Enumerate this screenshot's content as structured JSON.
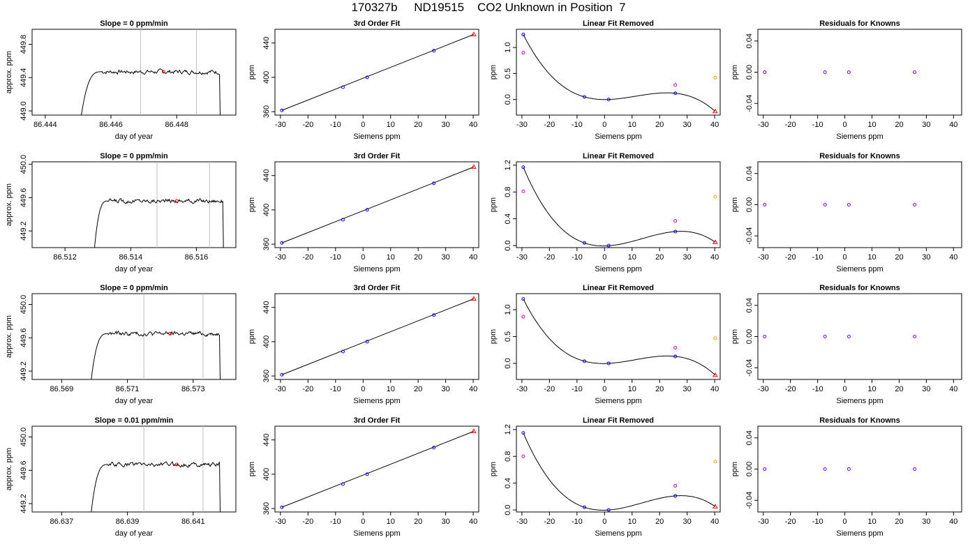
{
  "page": {
    "title": "170327b     ND19515    CO2 Unknown in Position  7"
  },
  "chart_data": [
    {
      "type": "line",
      "row": 0,
      "col": 0,
      "title": "Slope =  0  ppm/min",
      "xlabel": "day of year",
      "ylabel": "approx. ppm",
      "xlim": [
        86.4436,
        86.4498
      ],
      "ylim": [
        448.95,
        449.98
      ],
      "xticks": [
        86.444,
        86.446,
        86.448
      ],
      "yticks": [
        449.0,
        449.4,
        449.8
      ],
      "vlines": [
        86.4469,
        86.4486
      ],
      "marker_x": 86.4476,
      "trace": {
        "x0": 86.4451,
        "x1": 86.4493,
        "rise_end": 86.4457,
        "plateau": 449.47,
        "start_val": 448.95,
        "end_val": 448.95
      }
    },
    {
      "type": "scatter",
      "row": 0,
      "col": 1,
      "title": "3rd Order Fit",
      "xlabel": "Siemens ppm",
      "ylabel": "ppm",
      "xlim": [
        -32,
        42
      ],
      "ylim": [
        356,
        456
      ],
      "xticks": [
        -30,
        -20,
        -10,
        0,
        10,
        20,
        30,
        40
      ],
      "yticks": [
        360,
        400,
        440
      ],
      "points": [
        [
          -29.5,
          361.5
        ],
        [
          -7.3,
          388.5
        ],
        [
          1.5,
          400
        ],
        [
          25.7,
          431
        ],
        [
          40.2,
          450
        ]
      ]
    },
    {
      "type": "scatter",
      "row": 0,
      "col": 2,
      "title": "Linear Fit Removed",
      "xlabel": "Siemens ppm",
      "ylabel": "ppm",
      "xlim": [
        -32,
        42
      ],
      "ylim": [
        -0.3,
        1.35
      ],
      "xticks": [
        -30,
        -20,
        -10,
        0,
        10,
        20,
        30,
        40
      ],
      "yticks": [
        0.0,
        0.5,
        1.0
      ],
      "known": [
        [
          -29.5,
          1.25
        ],
        [
          -7.3,
          0.05
        ],
        [
          1.5,
          0.0
        ],
        [
          25.7,
          0.12
        ]
      ],
      "magenta": [
        [
          -29.5,
          0.9
        ],
        [
          25.7,
          0.28
        ]
      ],
      "orange": [
        [
          40.2,
          0.42
        ]
      ],
      "unknown": [
        40.2,
        -0.23
      ],
      "curve": [
        1.25,
        0.05,
        0.0,
        0.12,
        -0.23
      ]
    },
    {
      "type": "scatter",
      "row": 0,
      "col": 3,
      "title": "Residuals for Knowns",
      "xlabel": "Siemens ppm",
      "ylabel": "ppm",
      "xlim": [
        -32,
        43
      ],
      "ylim": [
        -0.055,
        0.055
      ],
      "xticks": [
        -30,
        -20,
        -10,
        0,
        10,
        20,
        30,
        40
      ],
      "yticks": [
        -0.04,
        0.0,
        0.04
      ],
      "points": [
        [
          -29.5,
          0
        ],
        [
          -7.3,
          0
        ],
        [
          1.5,
          0
        ],
        [
          25.7,
          0
        ]
      ]
    },
    {
      "type": "line",
      "row": 1,
      "col": 0,
      "title": "Slope =  0  ppm/min",
      "xlabel": "day of year",
      "ylabel": "approx. ppm",
      "xlim": [
        86.511,
        86.5172
      ],
      "ylim": [
        449.0,
        450.03
      ],
      "xticks": [
        86.512,
        86.514,
        86.516
      ],
      "yticks": [
        449.2,
        449.6,
        450.0
      ],
      "vlines": [
        86.5148,
        86.5164
      ],
      "marker_x": 86.5154,
      "trace": {
        "x0": 86.5129,
        "x1": 86.5168,
        "rise_end": 86.5133,
        "plateau": 449.56,
        "start_val": 449.0,
        "end_val": 449.0
      }
    },
    {
      "type": "scatter",
      "row": 1,
      "col": 1,
      "title": "3rd Order Fit",
      "xlabel": "Siemens ppm",
      "ylabel": "ppm",
      "xlim": [
        -32,
        42
      ],
      "ylim": [
        356,
        456
      ],
      "xticks": [
        -30,
        -20,
        -10,
        0,
        10,
        20,
        30,
        40
      ],
      "yticks": [
        360,
        400,
        440
      ],
      "points": [
        [
          -29.5,
          361.5
        ],
        [
          -7.3,
          388.5
        ],
        [
          1.5,
          400
        ],
        [
          25.7,
          431
        ],
        [
          40.2,
          450
        ]
      ]
    },
    {
      "type": "scatter",
      "row": 1,
      "col": 2,
      "title": "Linear Fit Removed",
      "xlabel": "Siemens ppm",
      "ylabel": "ppm",
      "xlim": [
        -32,
        42
      ],
      "ylim": [
        -0.03,
        1.25
      ],
      "xticks": [
        -30,
        -20,
        -10,
        0,
        10,
        20,
        30,
        40
      ],
      "yticks": [
        0.0,
        0.4,
        0.8,
        1.2
      ],
      "known": [
        [
          -29.5,
          1.17
        ],
        [
          -7.3,
          0.04
        ],
        [
          1.5,
          0.0
        ],
        [
          25.7,
          0.21
        ]
      ],
      "magenta": [
        [
          -29.5,
          0.81
        ],
        [
          25.7,
          0.37
        ]
      ],
      "orange": [
        [
          40.2,
          0.73
        ]
      ],
      "unknown": [
        40.2,
        0.05
      ],
      "curve": [
        1.17,
        0.04,
        0.0,
        0.21,
        0.05
      ]
    },
    {
      "type": "scatter",
      "row": 1,
      "col": 3,
      "title": "Residuals for Knowns",
      "xlabel": "Siemens ppm",
      "ylabel": "ppm",
      "xlim": [
        -32,
        43
      ],
      "ylim": [
        -0.055,
        0.055
      ],
      "xticks": [
        -30,
        -20,
        -10,
        0,
        10,
        20,
        30,
        40
      ],
      "yticks": [
        -0.04,
        0.0,
        0.04
      ],
      "points": [
        [
          -29.5,
          0
        ],
        [
          -7.3,
          0
        ],
        [
          1.5,
          0
        ],
        [
          25.7,
          0
        ]
      ]
    },
    {
      "type": "line",
      "row": 2,
      "col": 0,
      "title": "Slope =  0  ppm/min",
      "xlabel": "day of year",
      "ylabel": "approx. ppm",
      "xlim": [
        86.5681,
        86.5743
      ],
      "ylim": [
        449.1,
        450.13
      ],
      "xticks": [
        86.569,
        86.571,
        86.573
      ],
      "yticks": [
        449.2,
        449.6,
        450.0
      ],
      "vlines": [
        86.5715,
        86.5733
      ],
      "marker_x": 86.5723,
      "trace": {
        "x0": 86.5699,
        "x1": 86.5738,
        "rise_end": 86.5704,
        "plateau": 449.65,
        "start_val": 449.1,
        "end_val": 449.1
      }
    },
    {
      "type": "scatter",
      "row": 2,
      "col": 1,
      "title": "3rd Order Fit",
      "xlabel": "Siemens ppm",
      "ylabel": "ppm",
      "xlim": [
        -32,
        42
      ],
      "ylim": [
        356,
        456
      ],
      "xticks": [
        -30,
        -20,
        -10,
        0,
        10,
        20,
        30,
        40
      ],
      "yticks": [
        360,
        400,
        440
      ],
      "points": [
        [
          -29.5,
          361.5
        ],
        [
          -7.3,
          388.5
        ],
        [
          1.5,
          400
        ],
        [
          25.7,
          431
        ],
        [
          40.2,
          450
        ]
      ]
    },
    {
      "type": "scatter",
      "row": 2,
      "col": 2,
      "title": "Linear Fit Removed",
      "xlabel": "Siemens ppm",
      "ylabel": "ppm",
      "xlim": [
        -32,
        42
      ],
      "ylim": [
        -0.3,
        1.3
      ],
      "xticks": [
        -30,
        -20,
        -10,
        0,
        10,
        20,
        30,
        40
      ],
      "yticks": [
        0.0,
        0.5,
        1.0
      ],
      "known": [
        [
          -29.5,
          1.2
        ],
        [
          -7.3,
          0.04
        ],
        [
          1.5,
          0.0
        ],
        [
          25.7,
          0.13
        ]
      ],
      "magenta": [
        [
          -29.5,
          0.87
        ],
        [
          25.7,
          0.29
        ]
      ],
      "orange": [
        [
          40.2,
          0.47
        ]
      ],
      "unknown": [
        40.2,
        -0.22
      ],
      "curve": [
        1.2,
        0.04,
        0.0,
        0.13,
        -0.22
      ]
    },
    {
      "type": "scatter",
      "row": 2,
      "col": 3,
      "title": "Residuals for Knowns",
      "xlabel": "Siemens ppm",
      "ylabel": "ppm",
      "xlim": [
        -32,
        43
      ],
      "ylim": [
        -0.055,
        0.055
      ],
      "xticks": [
        -30,
        -20,
        -10,
        0,
        10,
        20,
        30,
        40
      ],
      "yticks": [
        -0.04,
        0.0,
        0.04
      ],
      "points": [
        [
          -29.5,
          0
        ],
        [
          -7.3,
          0
        ],
        [
          1.5,
          0
        ],
        [
          25.7,
          0
        ]
      ]
    },
    {
      "type": "line",
      "row": 3,
      "col": 0,
      "title": "Slope =  0.01  ppm/min",
      "xlabel": "day of year",
      "ylabel": "approx. ppm",
      "xlim": [
        86.6361,
        86.6423
      ],
      "ylim": [
        449.1,
        450.13
      ],
      "xticks": [
        86.637,
        86.639,
        86.641
      ],
      "yticks": [
        449.2,
        449.6,
        450.0
      ],
      "vlines": [
        86.6395,
        86.6413
      ],
      "marker_x": 86.6405,
      "trace": {
        "x0": 86.6379,
        "x1": 86.6418,
        "rise_end": 86.6384,
        "plateau": 449.67,
        "start_val": 449.1,
        "end_val": 449.1
      }
    },
    {
      "type": "scatter",
      "row": 3,
      "col": 1,
      "title": "3rd Order Fit",
      "xlabel": "Siemens ppm",
      "ylabel": "ppm",
      "xlim": [
        -32,
        42
      ],
      "ylim": [
        356,
        456
      ],
      "xticks": [
        -30,
        -20,
        -10,
        0,
        10,
        20,
        30,
        40
      ],
      "yticks": [
        360,
        400,
        440
      ],
      "points": [
        [
          -29.5,
          361.5
        ],
        [
          -7.3,
          388.5
        ],
        [
          1.5,
          400
        ],
        [
          25.7,
          431
        ],
        [
          40.2,
          450
        ]
      ]
    },
    {
      "type": "scatter",
      "row": 3,
      "col": 2,
      "title": "Linear Fit Removed",
      "xlabel": "Siemens ppm",
      "ylabel": "ppm",
      "xlim": [
        -32,
        42
      ],
      "ylim": [
        -0.03,
        1.25
      ],
      "xticks": [
        -30,
        -20,
        -10,
        0,
        10,
        20,
        30,
        40
      ],
      "yticks": [
        0.0,
        0.4,
        0.8,
        1.2
      ],
      "known": [
        [
          -29.5,
          1.15
        ],
        [
          -7.3,
          0.04
        ],
        [
          1.5,
          0.0
        ],
        [
          25.7,
          0.21
        ]
      ],
      "magenta": [
        [
          -29.5,
          0.8
        ],
        [
          25.7,
          0.36
        ]
      ],
      "orange": [
        [
          40.2,
          0.72
        ]
      ],
      "unknown": [
        40.2,
        0.05
      ],
      "curve": [
        1.15,
        0.04,
        0.0,
        0.21,
        0.05
      ]
    },
    {
      "type": "scatter",
      "row": 3,
      "col": 3,
      "title": "Residuals for Knowns",
      "xlabel": "Siemens ppm",
      "ylabel": "ppm",
      "xlim": [
        -32,
        43
      ],
      "ylim": [
        -0.055,
        0.055
      ],
      "xticks": [
        -30,
        -20,
        -10,
        0,
        10,
        20,
        30,
        40
      ],
      "yticks": [
        -0.04,
        0.0,
        0.04
      ],
      "points": [
        [
          -29.5,
          0
        ],
        [
          -7.3,
          0
        ],
        [
          1.5,
          0
        ],
        [
          25.7,
          0
        ]
      ]
    }
  ],
  "colors": {
    "known": "#0000ff",
    "magenta": "#cc00cc",
    "orange": "#ffa500",
    "unknown": "#ff0000",
    "vline": "#bebebe",
    "axis": "#000000"
  }
}
